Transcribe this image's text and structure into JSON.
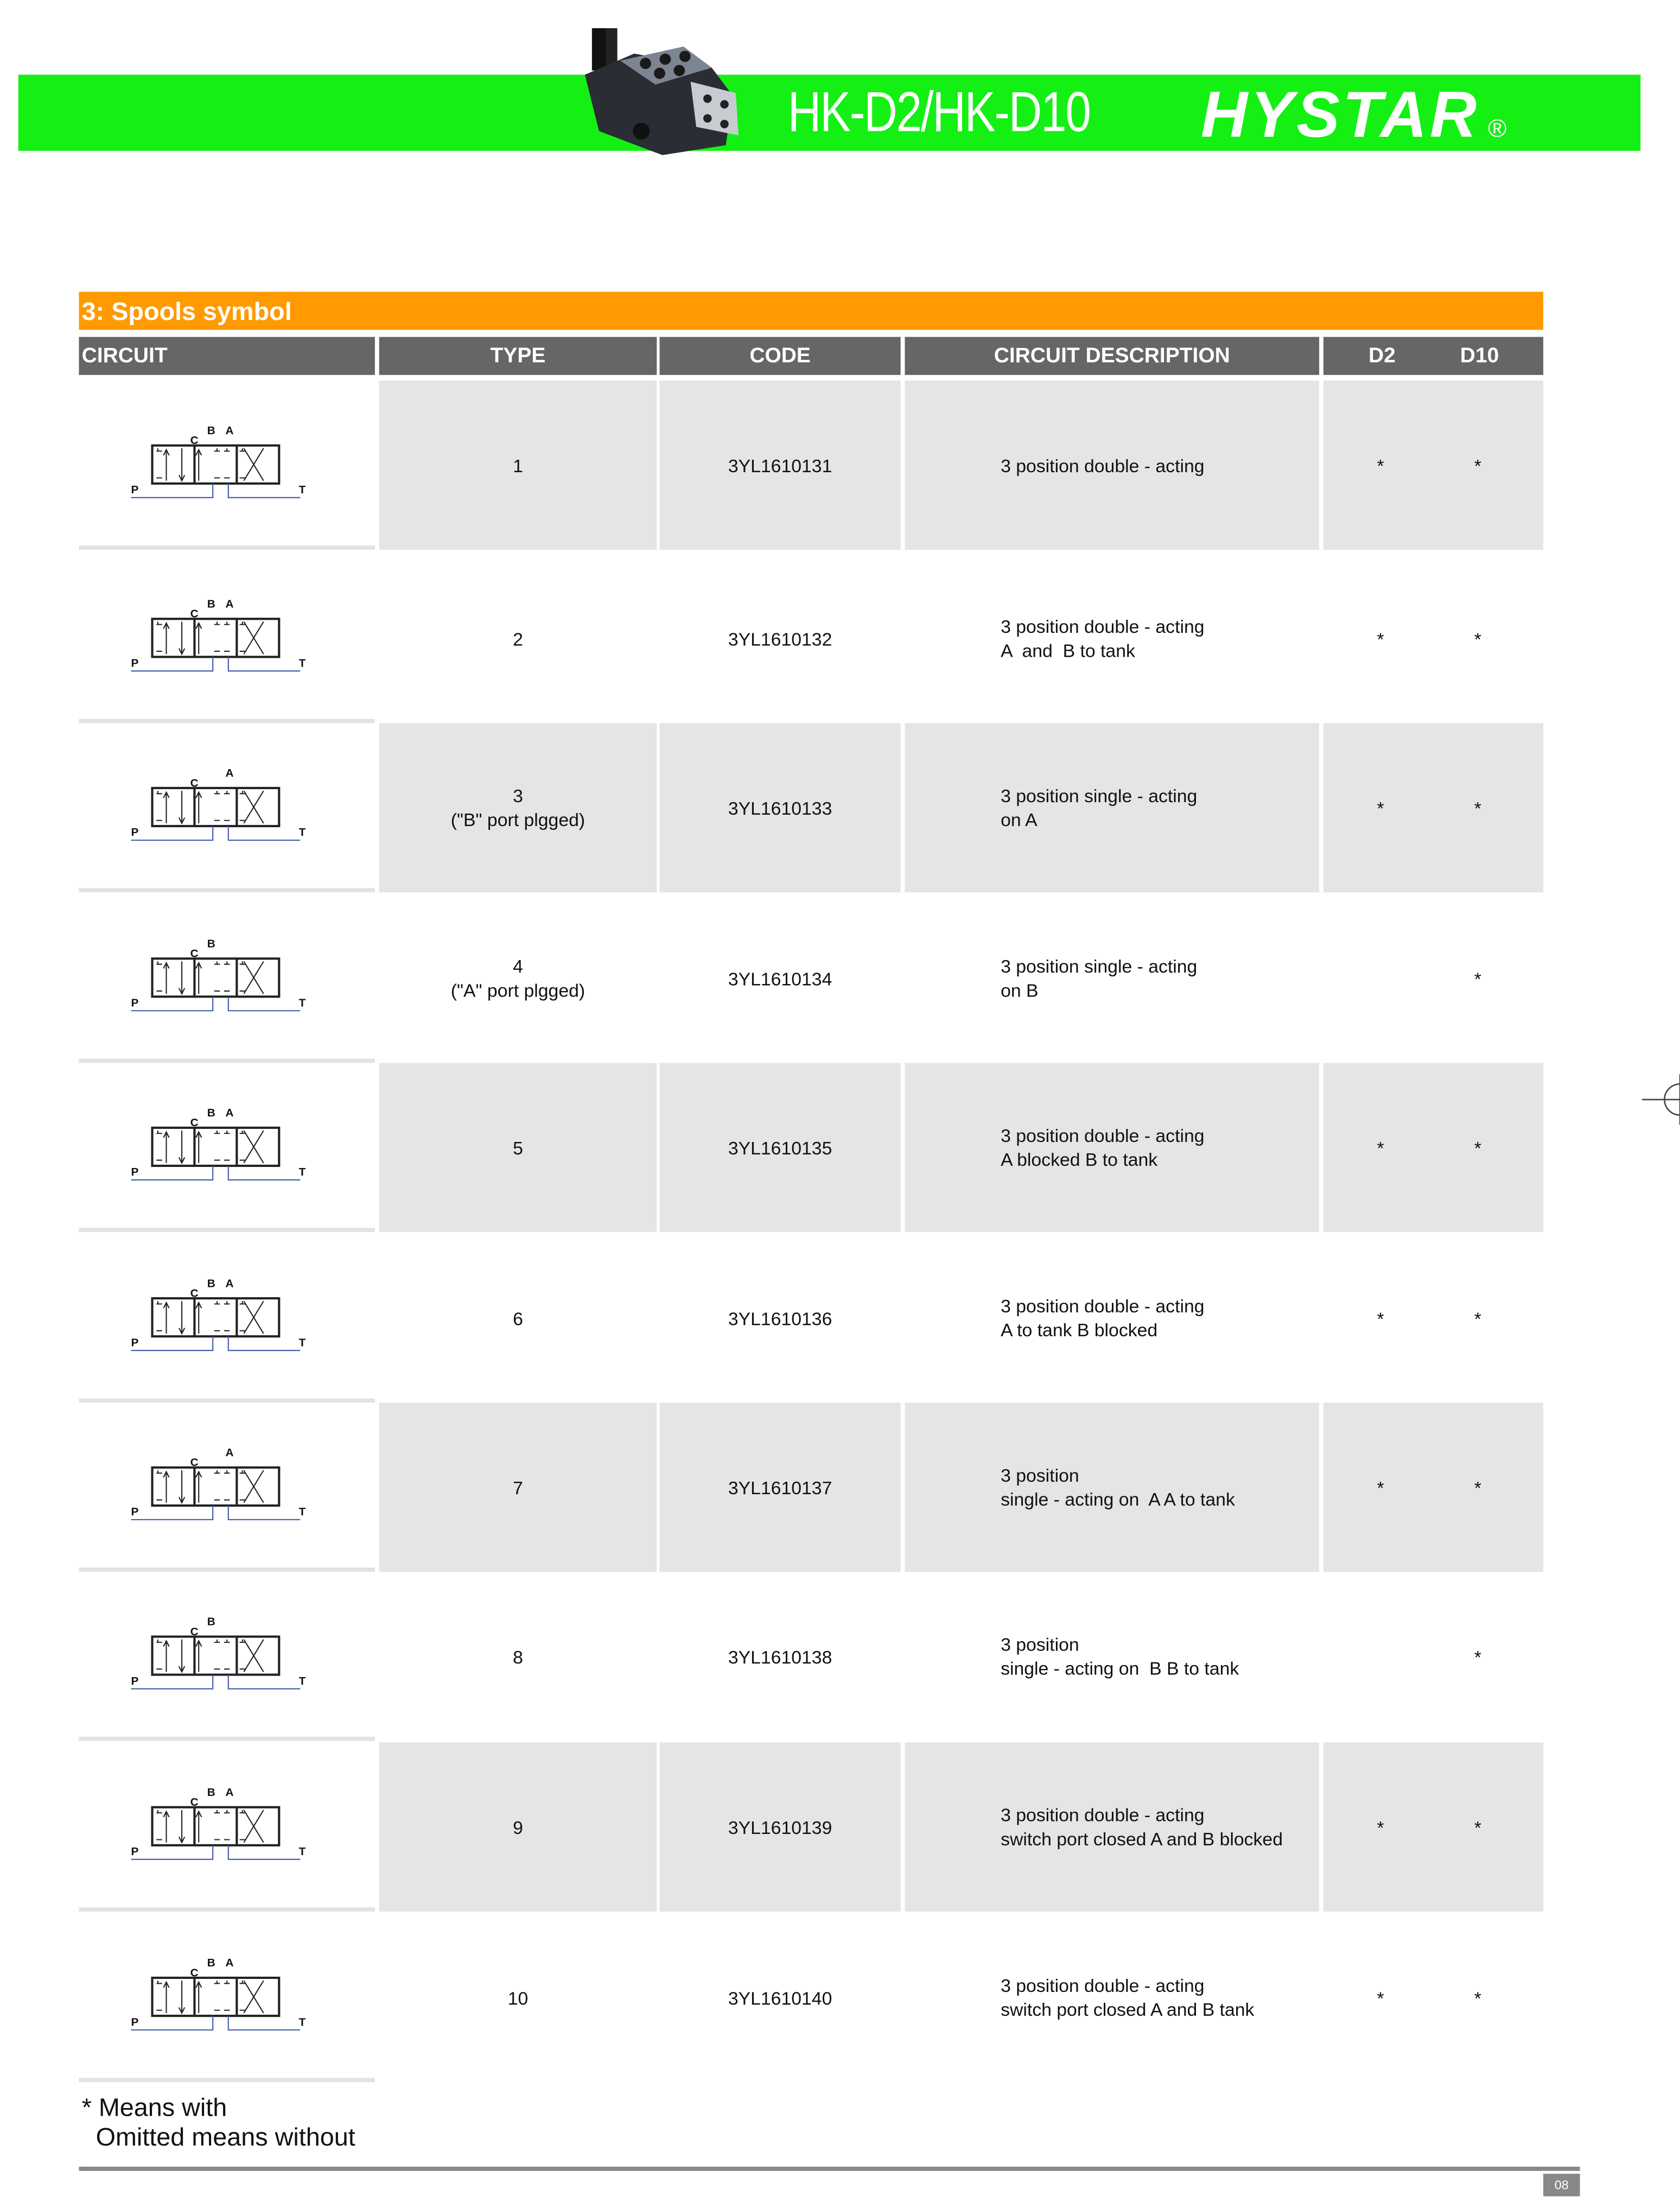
{
  "header": {
    "model": "HK-D2/HK-D10",
    "brand": "HYSTAR",
    "registered_mark": "®",
    "banner_color": "#14f014"
  },
  "section": {
    "title": "3: Spools symbol",
    "color": "#ff9a00"
  },
  "table": {
    "columns": [
      "CIRCUIT",
      "TYPE",
      "CODE",
      "CIRCUIT DESCRIPTION",
      "D2",
      "D10"
    ],
    "rows": [
      {
        "labels": [
          "C",
          "B",
          "A"
        ],
        "port_p": "P",
        "port_t": "T",
        "type": [
          "1"
        ],
        "code": "3YL1610131",
        "description": [
          "3 position double - acting"
        ],
        "d2": "*",
        "d10": "*"
      },
      {
        "labels": [
          "C",
          "B",
          "A"
        ],
        "port_p": "P",
        "port_t": "T",
        "type": [
          "2"
        ],
        "code": "3YL1610132",
        "description": [
          "3 position double - acting",
          "A  and  B to tank"
        ],
        "d2": "*",
        "d10": "*"
      },
      {
        "labels": [
          "C",
          "",
          "A"
        ],
        "port_p": "P",
        "port_t": "T",
        "type": [
          "3",
          "(\"B\" port plgged)"
        ],
        "code": "3YL1610133",
        "description": [
          "3 position single - acting",
          "on A"
        ],
        "d2": "*",
        "d10": "*"
      },
      {
        "labels": [
          "C",
          "B",
          ""
        ],
        "port_p": "P",
        "port_t": "T",
        "type": [
          "4",
          "(\"A\" port plgged)"
        ],
        "code": "3YL1610134",
        "description": [
          "3 position single - acting",
          "on B"
        ],
        "d2": "",
        "d10": "*"
      },
      {
        "labels": [
          "C",
          "B",
          "A"
        ],
        "port_p": "P",
        "port_t": "T",
        "type": [
          "5"
        ],
        "code": "3YL1610135",
        "description": [
          "3 position double - acting",
          "A blocked B to tank"
        ],
        "d2": "*",
        "d10": "*"
      },
      {
        "labels": [
          "C",
          "B",
          "A"
        ],
        "port_p": "P",
        "port_t": "T",
        "type": [
          "6"
        ],
        "code": "3YL1610136",
        "description": [
          "3 position double - acting",
          "A to tank B blocked"
        ],
        "d2": "*",
        "d10": "*"
      },
      {
        "labels": [
          "C",
          "",
          "A"
        ],
        "port_p": "P",
        "port_t": "T",
        "type": [
          "7"
        ],
        "code": "3YL1610137",
        "description": [
          "3 position",
          "single - acting on  A A to tank"
        ],
        "d2": "*",
        "d10": "*"
      },
      {
        "labels": [
          "C",
          "B",
          ""
        ],
        "port_p": "P",
        "port_t": "T",
        "type": [
          "8"
        ],
        "code": "3YL1610138",
        "description": [
          "3 position",
          "single - acting on  B B to tank"
        ],
        "d2": "",
        "d10": "*"
      },
      {
        "labels": [
          "C",
          "B",
          "A"
        ],
        "port_p": "P",
        "port_t": "T",
        "type": [
          "9"
        ],
        "code": "3YL1610139",
        "description": [
          "3 position double - acting",
          "switch port closed A and B blocked"
        ],
        "d2": "*",
        "d10": "*"
      },
      {
        "labels": [
          "C",
          "B",
          "A"
        ],
        "port_p": "P",
        "port_t": "T",
        "type": [
          "10"
        ],
        "code": "3YL1610140",
        "description": [
          "3 position double - acting",
          "switch port closed A and B tank"
        ],
        "d2": "*",
        "d10": "*"
      }
    ]
  },
  "footnote": {
    "line1": "* Means with",
    "line2": "  Omitted means without"
  },
  "page_number": "08"
}
